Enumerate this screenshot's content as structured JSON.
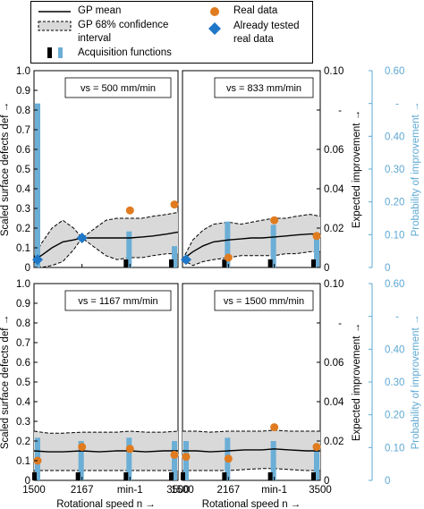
{
  "legend": {
    "gp_mean": "GP mean",
    "gp_ci_line1": "GP 68% confidence",
    "gp_ci_line2": "interval",
    "acq": "Acquisition functions",
    "real": "Real data",
    "tested_line1": "Already tested",
    "tested_line2": "real data"
  },
  "axis_labels": {
    "ylabel_left": "Scaled surface defects def →",
    "ylabel_ei": "Expected improvement →",
    "ylabel_pi": "Probability of improvement →",
    "xlabel": "Rotational speed n →"
  },
  "colors": {
    "band": "#d9d9d9",
    "real": "#e07b1f",
    "tested": "#1f77c8",
    "acq_blue": "#6baed6",
    "acq_black": "#000000",
    "pi_axis": "#5ea8d3"
  },
  "chart_data": [
    {
      "type": "line",
      "title": "vs = 500 mm/min",
      "x_ticks": [
        "1500",
        "2167",
        "min-1",
        "3500"
      ],
      "xlim": [
        1500,
        3500
      ],
      "ylim": [
        0,
        1.0
      ],
      "y_ticks": [
        "0",
        "0.1",
        "0.2",
        "0.3",
        "0.4",
        "0.5",
        "0.6",
        "0.7",
        "0.8",
        "0.9",
        "1.0"
      ],
      "gp_mean": {
        "x": [
          1500,
          1600,
          1750,
          1900,
          2050,
          2167,
          2350,
          2500,
          2650,
          2833,
          3000,
          3150,
          3350,
          3500
        ],
        "y": [
          0.04,
          0.06,
          0.1,
          0.13,
          0.14,
          0.15,
          0.15,
          0.15,
          0.15,
          0.15,
          0.155,
          0.16,
          0.17,
          0.18
        ]
      },
      "gp_upper": {
        "x": [
          1500,
          1600,
          1750,
          1900,
          2050,
          2167,
          2350,
          2500,
          2650,
          2833,
          3000,
          3150,
          3350,
          3500
        ],
        "y": [
          0.05,
          0.12,
          0.2,
          0.24,
          0.2,
          0.15,
          0.2,
          0.24,
          0.25,
          0.25,
          0.25,
          0.26,
          0.27,
          0.28
        ]
      },
      "gp_lower": {
        "x": [
          1500,
          1600,
          1750,
          1900,
          2050,
          2167,
          2350,
          2500,
          2650,
          2833,
          3000,
          3150,
          3350,
          3500
        ],
        "y": [
          0.03,
          0.0,
          0.01,
          0.03,
          0.09,
          0.15,
          0.1,
          0.06,
          0.04,
          0.05,
          0.05,
          0.06,
          0.07,
          0.07
        ]
      },
      "real_data": {
        "x": [
          2833,
          3500
        ],
        "y": [
          0.29,
          0.32
        ]
      },
      "tested_data": {
        "x": [
          1500,
          2167
        ],
        "y": [
          0.04,
          0.15
        ]
      },
      "acquisition": {
        "x": [
          1500,
          2833,
          3500
        ],
        "pi": [
          0.5,
          0.11,
          0.065
        ],
        "ei": [
          0.0,
          0.0012,
          0.0012
        ]
      }
    },
    {
      "type": "line",
      "title": "vs = 833 mm/min",
      "x_ticks": [
        "1500",
        "2167",
        "min-1",
        "3500"
      ],
      "xlim": [
        1500,
        3500
      ],
      "ylim": [
        0,
        1.0
      ],
      "ylim_ei": [
        0,
        0.1
      ],
      "y_ticks_ei": [
        "0",
        "0.02",
        "0.04",
        "0.06",
        "",
        "0.10"
      ],
      "ylim_pi": [
        0,
        0.6
      ],
      "y_ticks_pi": [
        "0",
        "0.10",
        "0.20",
        "0.30",
        "0.40",
        "",
        "0.60"
      ],
      "gp_mean": {
        "x": [
          1500,
          1650,
          1800,
          1950,
          2167,
          2350,
          2500,
          2650,
          2833,
          3000,
          3150,
          3350,
          3500
        ],
        "y": [
          0.04,
          0.08,
          0.11,
          0.13,
          0.14,
          0.145,
          0.15,
          0.15,
          0.155,
          0.16,
          0.165,
          0.17,
          0.17
        ]
      },
      "gp_upper": {
        "x": [
          1500,
          1650,
          1800,
          1950,
          2167,
          2350,
          2500,
          2650,
          2833,
          3000,
          3150,
          3350,
          3500
        ],
        "y": [
          0.04,
          0.14,
          0.19,
          0.22,
          0.23,
          0.22,
          0.23,
          0.24,
          0.25,
          0.25,
          0.26,
          0.27,
          0.26
        ]
      },
      "gp_lower": {
        "x": [
          1500,
          1650,
          1800,
          1950,
          2167,
          2350,
          2500,
          2650,
          2833,
          3000,
          3150,
          3350,
          3500
        ],
        "y": [
          0.04,
          0.01,
          0.03,
          0.04,
          0.05,
          0.06,
          0.06,
          0.06,
          0.06,
          0.07,
          0.07,
          0.08,
          0.08
        ]
      },
      "real_data": {
        "x": [
          2167,
          2833,
          3500
        ],
        "y": [
          0.05,
          0.24,
          0.16
        ]
      },
      "tested_data": {
        "x": [
          1500
        ],
        "y": [
          0.04
        ]
      },
      "acquisition": {
        "x": [
          2167,
          2833,
          3500
        ],
        "pi": [
          0.14,
          0.13,
          0.09
        ],
        "ei": [
          0.0012,
          0.0012,
          0.0012
        ]
      }
    },
    {
      "type": "line",
      "title": "vs = 1167 mm/min",
      "x_ticks": [
        "1500",
        "2167",
        "min-1",
        "3500"
      ],
      "xlim": [
        1500,
        3500
      ],
      "ylim": [
        0,
        1.0
      ],
      "y_ticks": [
        "0",
        "0.1",
        "0.2",
        "0.3",
        "0.4",
        "0.5",
        "0.6",
        "0.7",
        "0.8",
        "0.9",
        "1.0"
      ],
      "gp_mean": {
        "x": [
          1500,
          1700,
          1900,
          2167,
          2400,
          2650,
          2833,
          3050,
          3300,
          3500
        ],
        "y": [
          0.15,
          0.145,
          0.145,
          0.15,
          0.145,
          0.15,
          0.15,
          0.145,
          0.15,
          0.15
        ]
      },
      "gp_upper": {
        "x": [
          1500,
          1700,
          1900,
          2167,
          2400,
          2650,
          2833,
          3050,
          3300,
          3500
        ],
        "y": [
          0.25,
          0.24,
          0.24,
          0.245,
          0.245,
          0.245,
          0.25,
          0.245,
          0.245,
          0.25
        ]
      },
      "gp_lower": {
        "x": [
          1500,
          1700,
          1900,
          2167,
          2400,
          2650,
          2833,
          3050,
          3300,
          3500
        ],
        "y": [
          0.05,
          0.05,
          0.05,
          0.05,
          0.05,
          0.05,
          0.05,
          0.05,
          0.05,
          0.05
        ]
      },
      "real_data": {
        "x": [
          1500,
          2167,
          2833,
          3500
        ],
        "y": [
          0.1,
          0.17,
          0.16,
          0.13
        ]
      },
      "tested_data": {
        "x": [],
        "y": []
      },
      "acquisition": {
        "x": [
          1500,
          2167,
          2833,
          3500
        ],
        "pi": [
          0.13,
          0.12,
          0.13,
          0.12
        ],
        "ei": [
          0.0012,
          0.0012,
          0.0012,
          0.0012
        ]
      }
    },
    {
      "type": "line",
      "title": "vs = 1500 mm/min",
      "x_ticks": [
        "1500",
        "2167",
        "min-1",
        "3500"
      ],
      "xlim": [
        1500,
        3500
      ],
      "ylim": [
        0,
        1.0
      ],
      "ylim_ei": [
        0,
        0.1
      ],
      "y_ticks_ei": [
        "0",
        "0.02",
        "0.04",
        "0.06",
        "",
        "0.10"
      ],
      "ylim_pi": [
        0,
        0.6
      ],
      "y_ticks_pi": [
        "0",
        "0.10",
        "0.20",
        "0.30",
        "0.40",
        "",
        "0.60"
      ],
      "gp_mean": {
        "x": [
          1500,
          1700,
          1900,
          2167,
          2400,
          2650,
          2833,
          3050,
          3300,
          3500
        ],
        "y": [
          0.15,
          0.15,
          0.145,
          0.15,
          0.155,
          0.155,
          0.16,
          0.155,
          0.15,
          0.15
        ]
      },
      "gp_upper": {
        "x": [
          1500,
          1700,
          1900,
          2167,
          2400,
          2650,
          2833,
          3050,
          3300,
          3500
        ],
        "y": [
          0.25,
          0.25,
          0.245,
          0.25,
          0.25,
          0.25,
          0.255,
          0.25,
          0.25,
          0.25
        ]
      },
      "gp_lower": {
        "x": [
          1500,
          1700,
          1900,
          2167,
          2400,
          2650,
          2833,
          3050,
          3300,
          3500
        ],
        "y": [
          0.05,
          0.05,
          0.05,
          0.05,
          0.055,
          0.06,
          0.06,
          0.055,
          0.05,
          0.05
        ]
      },
      "real_data": {
        "x": [
          1500,
          2167,
          2833,
          3500
        ],
        "y": [
          0.12,
          0.11,
          0.27,
          0.17
        ]
      },
      "tested_data": {
        "x": [],
        "y": []
      },
      "acquisition": {
        "x": [
          1500,
          2167,
          2833,
          3500
        ],
        "pi": [
          0.12,
          0.13,
          0.12,
          0.11
        ],
        "ei": [
          0.0012,
          0.0012,
          0.0012,
          0.0012
        ]
      }
    }
  ]
}
